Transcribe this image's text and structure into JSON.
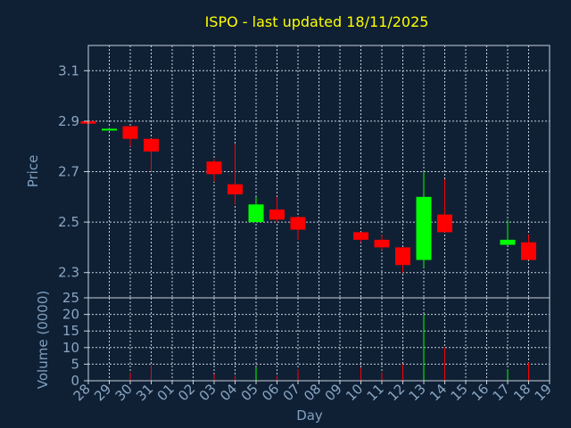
{
  "chart_data": {
    "type": "candlestick",
    "title": "ISPO - last updated 18/11/2025",
    "xlabel": "Day",
    "x_ticks": [
      "28",
      "29",
      "30",
      "31",
      "01",
      "02",
      "03",
      "04",
      "05",
      "06",
      "07",
      "08",
      "09",
      "10",
      "11",
      "12",
      "13",
      "14",
      "15",
      "16",
      "17",
      "18",
      "19"
    ],
    "price": {
      "ylabel": "Price",
      "ylim": [
        2.2,
        3.2
      ],
      "y_ticks": [
        "2.3",
        "2.5",
        "2.7",
        "2.9",
        "3.1"
      ],
      "y_tick_values": [
        2.3,
        2.5,
        2.7,
        2.9,
        3.1
      ],
      "grid": true,
      "up_color": "#00ff00",
      "down_color": "#ff0000",
      "candles": [
        {
          "day": "28",
          "open": 2.9,
          "high": 2.9,
          "low": 2.89,
          "close": 2.89
        },
        {
          "day": "29",
          "open": 2.87,
          "high": 2.875,
          "low": 2.865,
          "close": 2.87
        },
        {
          "day": "30",
          "open": 2.88,
          "high": 2.88,
          "low": 2.8,
          "close": 2.83
        },
        {
          "day": "31",
          "open": 2.83,
          "high": 2.83,
          "low": 2.7,
          "close": 2.78
        },
        {
          "day": "03",
          "open": 2.74,
          "high": 2.75,
          "low": 2.66,
          "close": 2.69
        },
        {
          "day": "04",
          "open": 2.65,
          "high": 2.81,
          "low": 2.57,
          "close": 2.61
        },
        {
          "day": "05",
          "open": 2.5,
          "high": 2.6,
          "low": 2.5,
          "close": 2.57
        },
        {
          "day": "06",
          "open": 2.55,
          "high": 2.6,
          "low": 2.5,
          "close": 2.51
        },
        {
          "day": "07",
          "open": 2.52,
          "high": 2.52,
          "low": 2.43,
          "close": 2.47
        },
        {
          "day": "10",
          "open": 2.46,
          "high": 2.46,
          "low": 2.42,
          "close": 2.43
        },
        {
          "day": "11",
          "open": 2.43,
          "high": 2.45,
          "low": 2.39,
          "close": 2.4
        },
        {
          "day": "12",
          "open": 2.4,
          "high": 2.4,
          "low": 2.3,
          "close": 2.33
        },
        {
          "day": "13",
          "open": 2.35,
          "high": 2.7,
          "low": 2.32,
          "close": 2.6
        },
        {
          "day": "14",
          "open": 2.53,
          "high": 2.67,
          "low": 2.46,
          "close": 2.46
        },
        {
          "day": "17",
          "open": 2.41,
          "high": 2.51,
          "low": 2.41,
          "close": 2.43
        },
        {
          "day": "18",
          "open": 2.42,
          "high": 2.45,
          "low": 2.35,
          "close": 2.35
        }
      ]
    },
    "volume": {
      "ylabel": "Volume (0000)",
      "ylim": [
        0,
        25
      ],
      "y_ticks": [
        "0",
        "5",
        "10",
        "15",
        "20",
        "25"
      ],
      "y_tick_values": [
        0,
        5,
        10,
        15,
        20,
        25
      ],
      "bars": [
        {
          "day": "30",
          "value": 2.5,
          "color": "#ff0000"
        },
        {
          "day": "31",
          "value": 4.5,
          "color": "#ff0000"
        },
        {
          "day": "03",
          "value": 2.0,
          "color": "#ff0000"
        },
        {
          "day": "04",
          "value": 1.5,
          "color": "#ff0000"
        },
        {
          "day": "05",
          "value": 4.0,
          "color": "#00ff00"
        },
        {
          "day": "06",
          "value": 1.5,
          "color": "#ff0000"
        },
        {
          "day": "07",
          "value": 3.5,
          "color": "#ff0000"
        },
        {
          "day": "10",
          "value": 4.0,
          "color": "#ff0000"
        },
        {
          "day": "11",
          "value": 2.5,
          "color": "#ff0000"
        },
        {
          "day": "12",
          "value": 5.0,
          "color": "#ff0000"
        },
        {
          "day": "13",
          "value": 20.0,
          "color": "#00ff00"
        },
        {
          "day": "14",
          "value": 10.0,
          "color": "#ff0000"
        },
        {
          "day": "17",
          "value": 3.5,
          "color": "#00ff00"
        },
        {
          "day": "18",
          "value": 5.5,
          "color": "#ff0000"
        }
      ]
    }
  }
}
